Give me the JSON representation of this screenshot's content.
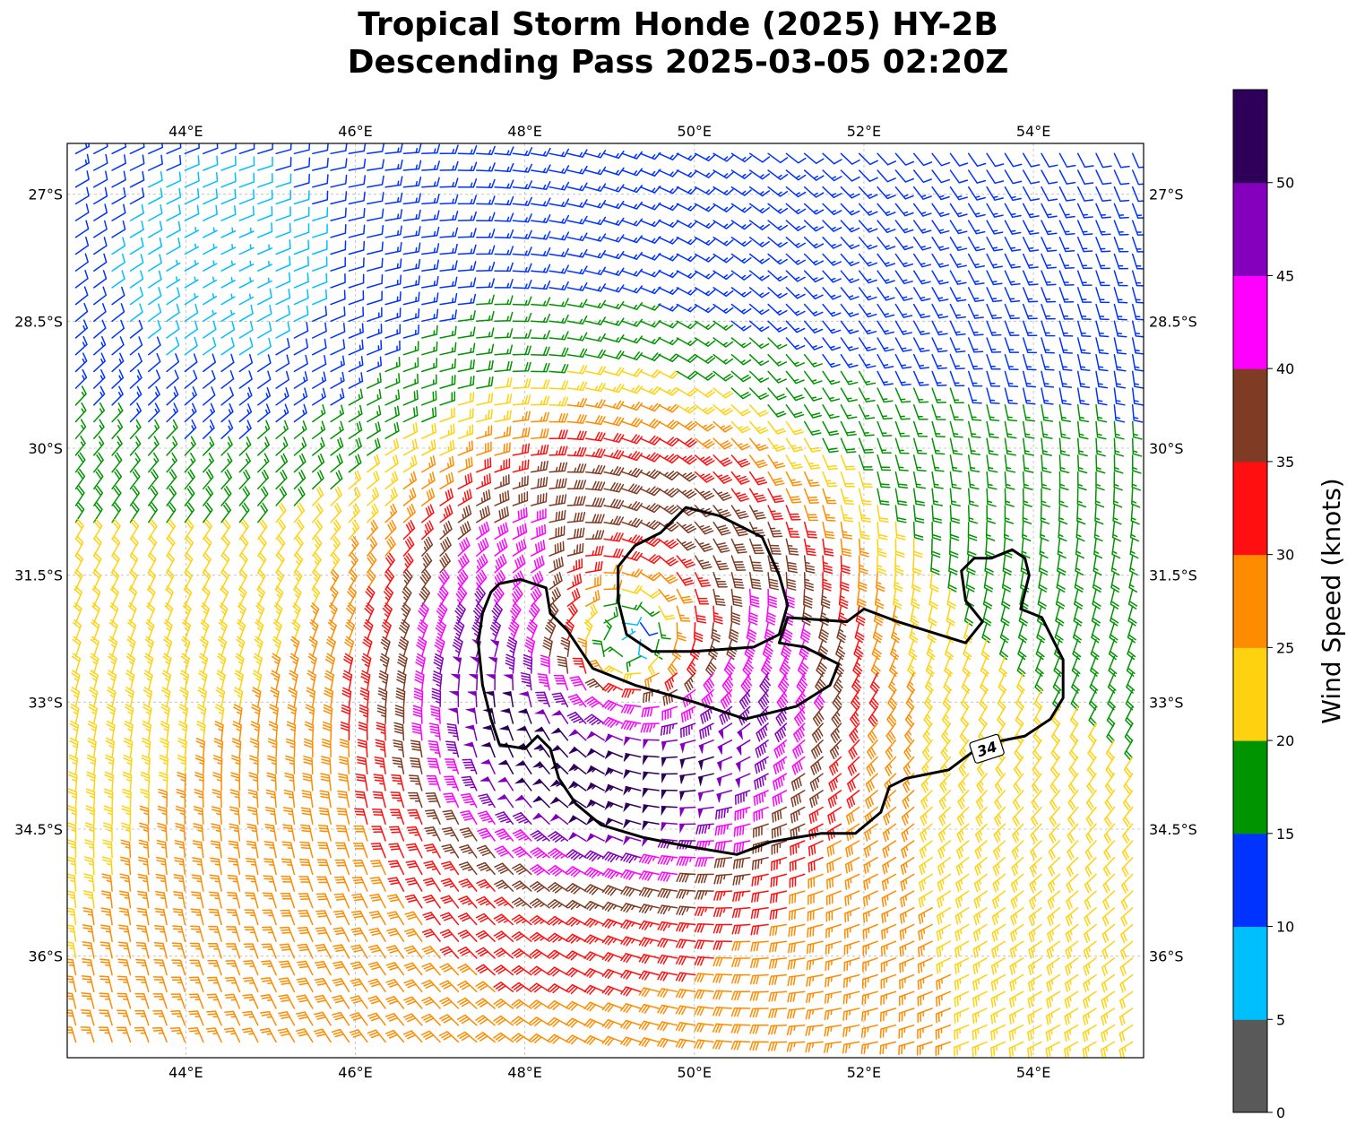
{
  "title": {
    "line1": "Tropical Storm Honde (2025) HY-2B",
    "line2": "Descending Pass 2025-03-05 02:20Z"
  },
  "map": {
    "lon_range": [
      42.6,
      55.3
    ],
    "lat_range": [
      -37.2,
      -26.4
    ],
    "lon_ticks": [
      {
        "value": 44,
        "label": "44°E"
      },
      {
        "value": 46,
        "label": "46°E"
      },
      {
        "value": 48,
        "label": "48°E"
      },
      {
        "value": 50,
        "label": "50°E"
      },
      {
        "value": 52,
        "label": "52°E"
      },
      {
        "value": 54,
        "label": "54°E"
      }
    ],
    "lat_ticks": [
      {
        "value": -27,
        "label": "27°S"
      },
      {
        "value": -28.5,
        "label": "28.5°S"
      },
      {
        "value": -30,
        "label": "30°S"
      },
      {
        "value": -31.5,
        "label": "31.5°S"
      },
      {
        "value": -33,
        "label": "33°S"
      },
      {
        "value": -34.5,
        "label": "34.5°S"
      },
      {
        "value": -36,
        "label": "36°S"
      }
    ],
    "gridlines": true,
    "center": {
      "lon": 49.2,
      "lat": -32.3
    },
    "contour_label": "34"
  },
  "colorbar": {
    "label": "Wind Speed (knots)",
    "ticks": [
      "0",
      "5",
      "10",
      "15",
      "20",
      "25",
      "30",
      "35",
      "40",
      "45",
      "50"
    ],
    "bins": [
      {
        "from": 0,
        "to": 5,
        "color": "#595959"
      },
      {
        "from": 5,
        "to": 10,
        "color": "#00bfff"
      },
      {
        "from": 10,
        "to": 15,
        "color": "#0033ff"
      },
      {
        "from": 15,
        "to": 20,
        "color": "#009400"
      },
      {
        "from": 20,
        "to": 25,
        "color": "#ffd20f"
      },
      {
        "from": 25,
        "to": 30,
        "color": "#ff8c00"
      },
      {
        "from": 30,
        "to": 35,
        "color": "#ff0f0f"
      },
      {
        "from": 35,
        "to": 40,
        "color": "#7f3b24"
      },
      {
        "from": 40,
        "to": 45,
        "color": "#ff00ff"
      },
      {
        "from": 45,
        "to": 50,
        "color": "#8400bd"
      },
      {
        "from": 50,
        "to": 55,
        "color": "#2e0059"
      }
    ]
  }
}
